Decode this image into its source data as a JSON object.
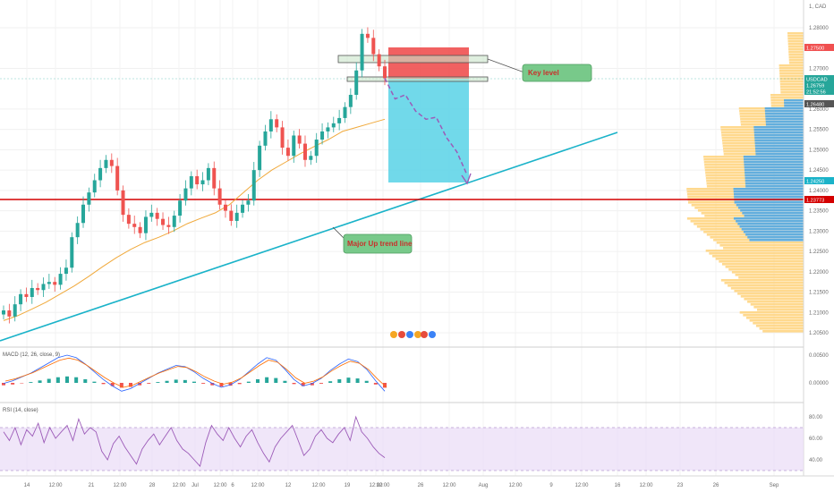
{
  "symbol": "USDCAD",
  "symbol_header": "1, CAD",
  "colors": {
    "bull": "#26a69a",
    "bear": "#ef5350",
    "ma": "#f0a93b",
    "trend": "#1bb3c9",
    "red_line": "#d40000",
    "tp_box": "#58d2e6",
    "sl_box": "#f05050",
    "vp_up": "#ffd27a",
    "vp_dn": "#52a8e6",
    "macd": "#2962ff",
    "signal": "#ff6d00",
    "rsi": "#9c5bb8",
    "rsi_band": "#e9dcf7"
  },
  "price_axis": {
    "ticks": [
      "1.28000",
      "1.27000",
      "1.26000",
      "1.25500",
      "1.25000",
      "1.24500",
      "1.24000",
      "1.23500",
      "1.23000",
      "1.22500",
      "1.22000",
      "1.21500",
      "1.21000",
      "1.20500"
    ],
    "tags": [
      {
        "label": "1.27500",
        "color": "#f05050"
      },
      {
        "label": "USDCAD",
        "color": "#26a69a"
      },
      {
        "label": "1.26759",
        "color": "#26a69a"
      },
      {
        "label": "21:52:56",
        "color": "#26a69a"
      },
      {
        "label": "1.26480",
        "color": "#555555"
      },
      {
        "label": "1.24250",
        "color": "#1bb3c9"
      },
      {
        "label": "1.23773",
        "color": "#d40000"
      }
    ]
  },
  "time_axis": {
    "ticks": [
      "14",
      "12:00",
      "21",
      "12:00",
      "28",
      "12:00",
      "Jul",
      "12:00",
      "6",
      "12:00",
      "12",
      "12:00",
      "19",
      "12:00",
      "12:00",
      "26",
      "12:00",
      "Aug",
      "12:00",
      "9",
      "12:00",
      "16",
      "12:00",
      "23",
      "26",
      "Sep"
    ]
  },
  "annotations": {
    "key_level": "Key level",
    "trend_line": "Major Up trend line"
  },
  "macd": {
    "title": "MACD (12, 26, close, 9)",
    "ticks": [
      "0.00500",
      "0.00000"
    ]
  },
  "rsi": {
    "title": "RSI (14, close)",
    "ticks": [
      "80.00",
      "60.00",
      "40.00"
    ]
  },
  "chart_data": {
    "type": "candlestick",
    "symbol": "USDCAD",
    "ylim": [
      1.2035,
      1.2845
    ],
    "closes": [
      1.2105,
      1.209,
      1.212,
      1.2145,
      1.2138,
      1.216,
      1.2155,
      1.217,
      1.2175,
      1.2168,
      1.2195,
      1.221,
      1.2285,
      1.232,
      1.2365,
      1.2395,
      1.2425,
      1.2455,
      1.2475,
      1.246,
      1.24,
      1.234,
      1.2318,
      1.231,
      1.2295,
      1.2335,
      1.2345,
      1.233,
      1.2315,
      1.231,
      1.2338,
      1.2375,
      1.2405,
      1.2435,
      1.2415,
      1.2425,
      1.2455,
      1.2405,
      1.2365,
      1.235,
      1.2325,
      1.2345,
      1.2365,
      1.2375,
      1.245,
      1.251,
      1.2545,
      1.2575,
      1.2555,
      1.2505,
      1.2485,
      1.2535,
      1.2515,
      1.2475,
      1.2485,
      1.2525,
      1.2545,
      1.2555,
      1.2565,
      1.2578,
      1.2605,
      1.2635,
      1.2695,
      1.2785,
      1.2775,
      1.2735,
      1.2705,
      1.2676
    ],
    "ma": [
      1.208,
      1.2092,
      1.2108,
      1.2125,
      1.2145,
      1.2165,
      1.2188,
      1.2212,
      1.2235,
      1.2255,
      1.2272,
      1.2285,
      1.23,
      1.2318,
      1.2332,
      1.2345,
      1.2365,
      1.2395,
      1.2425,
      1.245,
      1.247,
      1.249,
      1.2508,
      1.2525,
      1.2545,
      1.2555,
      1.2565,
      1.2575
    ],
    "projection": [
      1.2676,
      1.2625,
      1.2635,
      1.2595,
      1.2575,
      1.258,
      1.253,
      1.2495,
      1.2438
    ],
    "macd_hist": [
      -0.0006,
      -0.0004,
      -0.0001,
      0.0002,
      0.0006,
      0.001,
      0.0014,
      0.0016,
      0.0014,
      0.0009,
      0.0003,
      -0.0003,
      -0.0008,
      -0.0012,
      -0.001,
      -0.0006,
      -0.0002,
      0.0002,
      0.0005,
      0.0008,
      0.0007,
      0.0003,
      -0.0002,
      -0.0006,
      -0.0009,
      -0.0007,
      -0.0003,
      0.0003,
      0.0009,
      0.0014,
      0.0012,
      0.0005,
      -0.0003,
      -0.0008,
      -0.0006,
      -0.0002,
      0.0004,
      0.0009,
      0.0013,
      0.0011,
      0.0005,
      -0.0004,
      -0.0012
    ],
    "rsi": [
      66,
      58,
      70,
      54,
      68,
      62,
      74,
      56,
      70,
      60,
      66,
      72,
      58,
      78,
      64,
      70,
      66,
      48,
      40,
      55,
      62,
      52,
      44,
      36,
      50,
      58,
      64,
      54,
      62,
      70,
      58,
      50,
      46,
      40,
      34,
      56,
      72,
      64,
      58,
      70,
      60,
      52,
      62,
      68,
      56,
      46,
      38,
      52,
      60,
      66,
      72,
      58,
      44,
      50,
      62,
      68,
      60,
      56,
      64,
      70,
      58,
      80,
      66,
      60,
      52,
      46,
      42
    ]
  }
}
